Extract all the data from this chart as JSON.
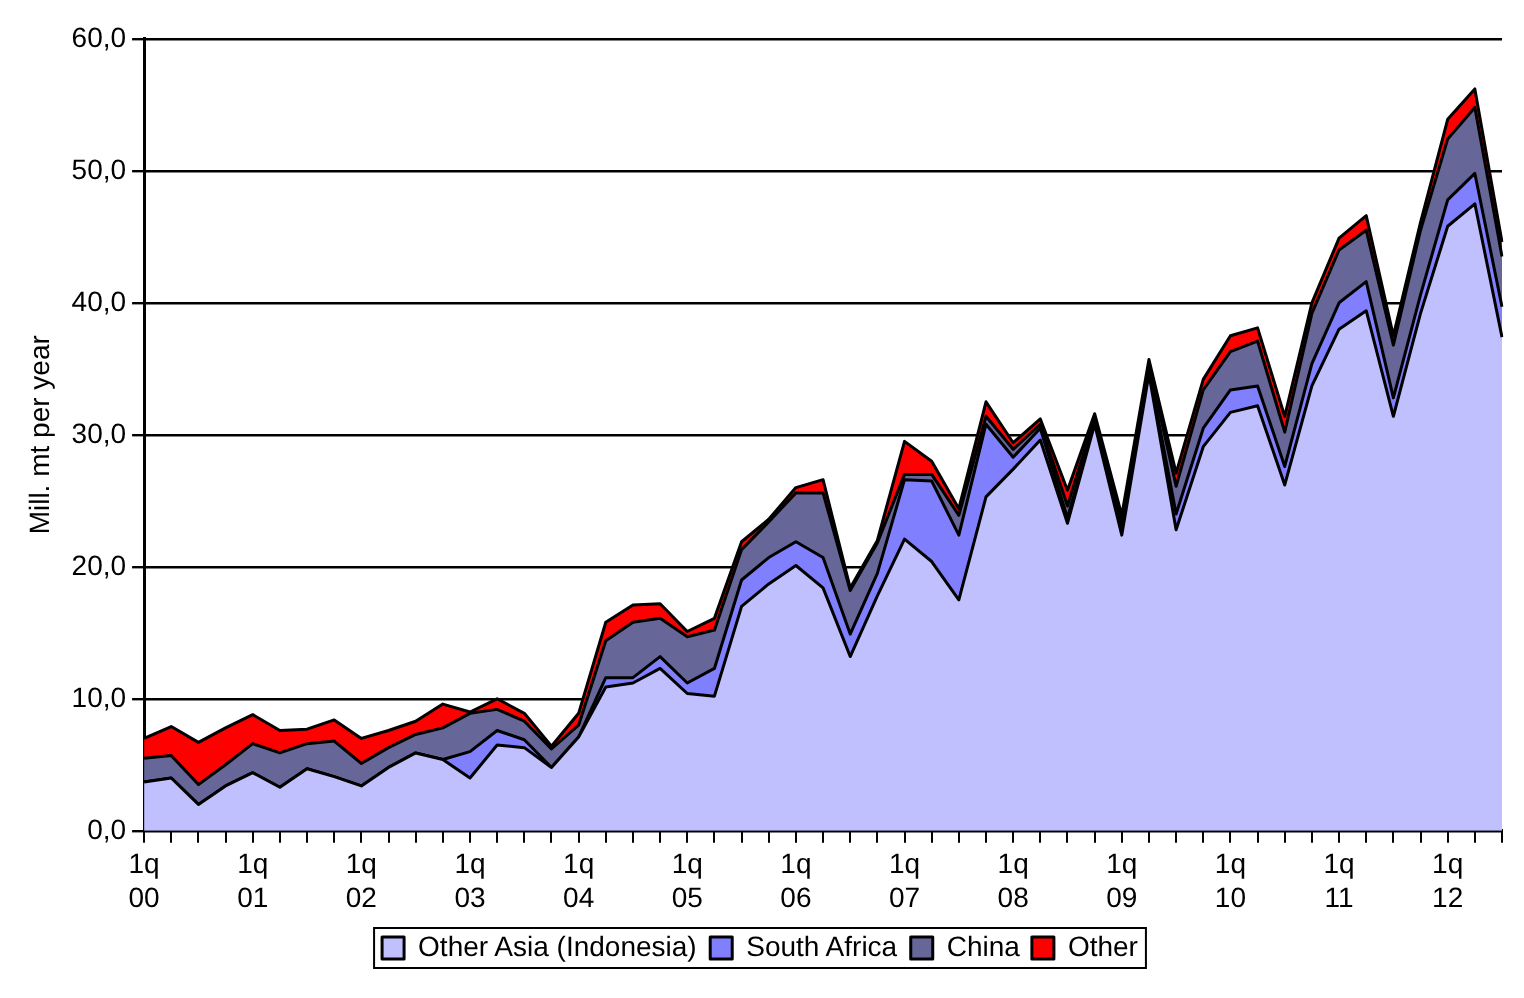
{
  "chart_data": {
    "type": "area",
    "stacked": true,
    "ylabel": "Mill. mt per year",
    "categories": [
      "1q\n00",
      null,
      null,
      null,
      "1q\n01",
      null,
      null,
      null,
      "1q\n02",
      null,
      null,
      null,
      "1q\n03",
      null,
      null,
      null,
      "1q\n04",
      null,
      null,
      null,
      "1q\n05",
      null,
      null,
      null,
      "1q\n06",
      null,
      null,
      null,
      "1q\n07",
      null,
      null,
      null,
      "1q\n08",
      null,
      null,
      null,
      "1q\n09",
      null,
      null,
      null,
      "1q\n10",
      null,
      null,
      null,
      "1q\n11",
      null,
      null,
      null,
      "1q\n12",
      null,
      null
    ],
    "series": [
      {
        "name": "Other Asia (Indonesia)",
        "color": "#c0c0ff",
        "values": [
          3.7,
          4.0,
          2.0,
          3.4,
          4.4,
          3.3,
          4.7,
          4.1,
          3.4,
          4.8,
          5.9,
          5.4,
          4.0,
          6.5,
          6.3,
          4.8,
          7.1,
          10.9,
          11.2,
          12.3,
          10.4,
          10.2,
          17.0,
          18.7,
          20.1,
          18.4,
          13.2,
          17.8,
          22.1,
          20.4,
          17.5,
          25.3,
          27.4,
          29.6,
          23.3,
          30.8,
          22.4,
          34.6,
          22.8,
          29.1,
          31.7,
          32.2,
          26.2,
          33.7,
          38.0,
          39.4,
          31.4,
          39.2,
          45.8,
          47.5,
          37.4
        ]
      },
      {
        "name": "South Africa",
        "color": "#8080ff",
        "values": [
          0,
          0,
          0,
          0,
          0,
          0,
          0,
          0,
          0,
          0,
          0,
          0,
          2.0,
          1.1,
          0.6,
          0,
          0,
          0.7,
          0.4,
          0.9,
          0.8,
          2.1,
          2.0,
          2.0,
          1.8,
          2.3,
          1.7,
          1.7,
          4.5,
          6.1,
          4.9,
          5.5,
          0.9,
          0.9,
          0.4,
          0.2,
          0.4,
          0.3,
          1.2,
          1.4,
          1.7,
          1.5,
          1.4,
          1.7,
          2.0,
          2.2,
          1.4,
          1.4,
          2.0,
          2.3,
          2.3
        ]
      },
      {
        "name": "China",
        "color": "#666699",
        "values": [
          1.8,
          1.7,
          1.5,
          1.6,
          2.2,
          2.6,
          1.9,
          2.7,
          1.7,
          1.5,
          1.4,
          2.4,
          2.9,
          1.6,
          1.4,
          1.4,
          0.9,
          2.8,
          4.2,
          2.9,
          3.5,
          2.9,
          2.3,
          2.7,
          3.7,
          4.9,
          3.3,
          2.3,
          0.4,
          0.5,
          1.5,
          0.6,
          0.6,
          0.3,
          0.9,
          0.3,
          0.6,
          0.4,
          2.1,
          2.9,
          2.9,
          3.4,
          2.6,
          3.8,
          4.0,
          3.9,
          4.0,
          4.9,
          4.6,
          5.0,
          3.8
        ]
      },
      {
        "name": "Other",
        "color": "#ff0000",
        "values": [
          1.5,
          2.2,
          3.2,
          2.8,
          2.2,
          1.7,
          1.1,
          1.6,
          1.9,
          1.3,
          1.0,
          1.8,
          0.1,
          0.8,
          0.6,
          0.2,
          0.9,
          1.4,
          1.3,
          1.1,
          0.4,
          0.9,
          0.6,
          0.2,
          0.4,
          1.0,
          0.2,
          0.2,
          2.5,
          1.0,
          0.5,
          1.1,
          0.5,
          0.4,
          1.2,
          0.3,
          0.5,
          0.4,
          1.0,
          0.8,
          1.2,
          1.0,
          1.2,
          0.8,
          0.9,
          1.1,
          0.7,
          0.6,
          1.5,
          1.4,
          1.1
        ]
      }
    ],
    "ylim": [
      0,
      60
    ],
    "yticks": [
      {
        "value": 0,
        "label": "0,0"
      },
      {
        "value": 10,
        "label": "10,0"
      },
      {
        "value": 20,
        "label": "20,0"
      },
      {
        "value": 30,
        "label": "30,0"
      },
      {
        "value": 40,
        "label": "40,0"
      },
      {
        "value": 50,
        "label": "50,0"
      },
      {
        "value": 60,
        "label": "60,0"
      }
    ],
    "grid": "y",
    "legend": "bottom"
  }
}
